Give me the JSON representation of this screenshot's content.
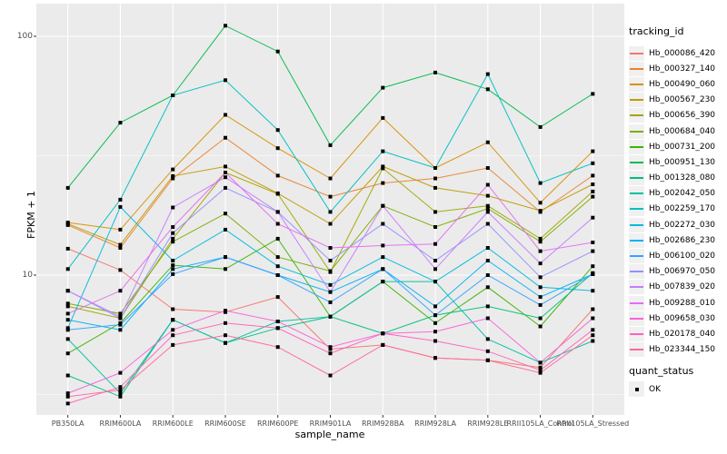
{
  "figure": {
    "background": "#FFFFFF",
    "panel_background": "#EBEBEB",
    "gridline_color": "#FFFFFF",
    "tick_color": "#333333",
    "tick_label_color": "#4d4d4d"
  },
  "chart_data": {
    "type": "line",
    "title": "",
    "xlabel": "sample_name",
    "ylabel": "FPKM + 1",
    "yscale": "log10",
    "ylim": [
      2.6,
      130
    ],
    "grid": "on",
    "legend_position": "right",
    "yticks": [
      {
        "value": 100,
        "label": "100"
      },
      {
        "value": 10,
        "label": "10"
      }
    ],
    "minor_yticks": [
      31.62,
      3.162
    ],
    "categories": [
      "PB350LA",
      "RRIM600LA",
      "RRIM600LE",
      "RRIM600SE",
      "RRIM600PE",
      "RRIM901LA",
      "RRIM928BA",
      "RRIM928LA",
      "RRIM928LE",
      "RRII105LA_Control",
      "RRII105LA_Stressed"
    ],
    "point_marker": {
      "shape": "square",
      "color": "#000000",
      "size": 4
    },
    "series": [
      {
        "name": "Hb_000086_420",
        "color": "#F8766D",
        "values": [
          12.9,
          10.5,
          7.2,
          7.0,
          8.1,
          4.9,
          5.1,
          4.5,
          4.4,
          4.1,
          7.2
        ]
      },
      {
        "name": "Hb_000327_140",
        "color": "#EA8331",
        "values": [
          16.2,
          13.0,
          25.4,
          37.6,
          26.1,
          21.3,
          24.3,
          25.4,
          28.1,
          18.4,
          26.1
        ]
      },
      {
        "name": "Hb_000490_060",
        "color": "#D89000",
        "values": [
          16.6,
          15.5,
          27.7,
          46.9,
          34.0,
          25.4,
          45.5,
          28.1,
          36.0,
          20.1,
          33.0
        ]
      },
      {
        "name": "Hb_000567_230",
        "color": "#C09B00",
        "values": [
          16.4,
          13.4,
          26.0,
          28.5,
          22.0,
          16.4,
          28.5,
          23.2,
          21.5,
          18.6,
          24.0
        ]
      },
      {
        "name": "Hb_000656_390",
        "color": "#A3A500",
        "values": [
          7.4,
          6.6,
          14.2,
          26.9,
          21.9,
          10.3,
          28.0,
          18.4,
          19.5,
          14.2,
          22.4
        ]
      },
      {
        "name": "Hb_000684_040",
        "color": "#7CAE00",
        "values": [
          7.6,
          6.9,
          13.8,
          18.1,
          11.9,
          10.4,
          19.5,
          15.9,
          19.0,
          13.8,
          21.3
        ]
      },
      {
        "name": "Hb_000731_200",
        "color": "#39B600",
        "values": [
          4.7,
          6.3,
          11.0,
          10.6,
          14.2,
          6.7,
          9.4,
          6.3,
          8.9,
          6.1,
          10.9
        ]
      },
      {
        "name": "Hb_000951_130",
        "color": "#00BB4E",
        "values": [
          23.2,
          43.5,
          56.6,
          110.8,
          86.4,
          35.0,
          60.9,
          70.5,
          60.0,
          41.7,
          57.4
        ]
      },
      {
        "name": "Hb_001328_080",
        "color": "#00BF7D",
        "values": [
          3.8,
          3.1,
          6.5,
          5.2,
          6.0,
          6.7,
          5.7,
          6.8,
          7.4,
          6.6,
          10.2
        ]
      },
      {
        "name": "Hb_002042_050",
        "color": "#00C1A3",
        "values": [
          5.4,
          3.2,
          6.5,
          5.2,
          6.4,
          6.7,
          9.4,
          9.4,
          5.4,
          4.3,
          5.3
        ]
      },
      {
        "name": "Hb_002259_170",
        "color": "#00BFC4",
        "values": [
          10.6,
          20.7,
          56.6,
          65.5,
          40.5,
          18.4,
          33.0,
          28.1,
          69.5,
          24.3,
          29.4
        ]
      },
      {
        "name": "Hb_002272_030",
        "color": "#00BAE0",
        "values": [
          6.0,
          19.3,
          11.5,
          15.5,
          10.9,
          9.1,
          11.9,
          9.4,
          13.0,
          8.9,
          8.6
        ]
      },
      {
        "name": "Hb_002686_230",
        "color": "#00B0F6",
        "values": [
          6.5,
          5.9,
          10.6,
          11.9,
          10.0,
          8.5,
          10.6,
          7.4,
          11.5,
          8.1,
          10.1
        ]
      },
      {
        "name": "Hb_006100_020",
        "color": "#35A2FF",
        "values": [
          5.9,
          6.2,
          10.1,
          11.9,
          10.0,
          7.7,
          10.6,
          6.8,
          10.0,
          7.5,
          10.1
        ]
      },
      {
        "name": "Hb_006970_050",
        "color": "#9590FF",
        "values": [
          8.6,
          6.6,
          15.0,
          23.2,
          18.4,
          11.5,
          16.4,
          11.5,
          16.4,
          9.8,
          12.6
        ]
      },
      {
        "name": "Hb_007839_020",
        "color": "#C77CFF",
        "values": [
          8.6,
          6.7,
          19.2,
          25.7,
          18.4,
          8.5,
          19.5,
          10.6,
          18.4,
          11.2,
          17.4
        ]
      },
      {
        "name": "Hb_009288_010",
        "color": "#E76BF3",
        "values": [
          6.9,
          8.6,
          15.9,
          26.9,
          16.4,
          13.0,
          13.3,
          13.5,
          23.9,
          12.6,
          13.7
        ]
      },
      {
        "name": "Hb_009658_030",
        "color": "#FA62DB",
        "values": [
          3.2,
          3.9,
          5.9,
          7.1,
          6.4,
          5.0,
          5.7,
          5.8,
          6.6,
          4.3,
          6.6
        ]
      },
      {
        "name": "Hb_020178_040",
        "color": "#FF62BC",
        "values": [
          2.9,
          3.4,
          5.6,
          6.3,
          6.0,
          4.7,
          5.7,
          5.3,
          4.8,
          4.0,
          5.9
        ]
      },
      {
        "name": "Hb_023344_150",
        "color": "#FF6A98",
        "values": [
          3.1,
          3.3,
          5.1,
          5.6,
          5.0,
          3.8,
          5.1,
          4.5,
          4.4,
          3.9,
          5.6
        ]
      }
    ],
    "legend": {
      "tracking_title": "tracking_id",
      "quant_title": "quant_status",
      "quant_items": [
        {
          "label": "OK",
          "marker": "black-square"
        }
      ]
    }
  }
}
